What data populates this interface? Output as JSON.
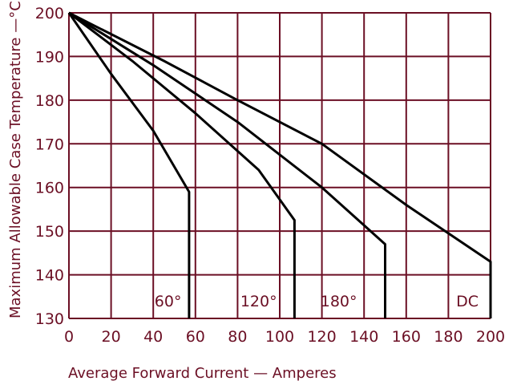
{
  "chart_data": {
    "type": "line",
    "xlabel": "Average Forward Current — Amperes",
    "ylabel": "Maximum Allowable Case Temperature —°C",
    "xlim": [
      0,
      200
    ],
    "ylim": [
      130,
      200
    ],
    "xticks": [
      0,
      20,
      40,
      60,
      80,
      100,
      120,
      140,
      160,
      180,
      200
    ],
    "yticks": [
      130,
      140,
      150,
      160,
      170,
      180,
      190,
      200
    ],
    "grid": true,
    "colors": {
      "grid": "#6b0f24",
      "curves": "#000000",
      "text": "#6b0f24"
    },
    "series": [
      {
        "name": "60°",
        "label_at": [
          47,
          134
        ],
        "x": [
          0,
          20,
          40,
          57,
          57
        ],
        "y": [
          200,
          186,
          173,
          159,
          130
        ]
      },
      {
        "name": "120°",
        "label_at": [
          90,
          134
        ],
        "x": [
          0,
          30,
          60,
          90,
          107,
          107
        ],
        "y": [
          200,
          189,
          177,
          164,
          152.5,
          130
        ]
      },
      {
        "name": "180°",
        "label_at": [
          128,
          134
        ],
        "x": [
          0,
          40,
          80,
          120,
          150,
          150
        ],
        "y": [
          200,
          188,
          175,
          160,
          147,
          130
        ]
      },
      {
        "name": "DC",
        "label_at": [
          189,
          134
        ],
        "x": [
          0,
          45,
          80,
          120,
          160,
          200,
          200
        ],
        "y": [
          200,
          189,
          180,
          170,
          156,
          143,
          130
        ]
      }
    ]
  }
}
